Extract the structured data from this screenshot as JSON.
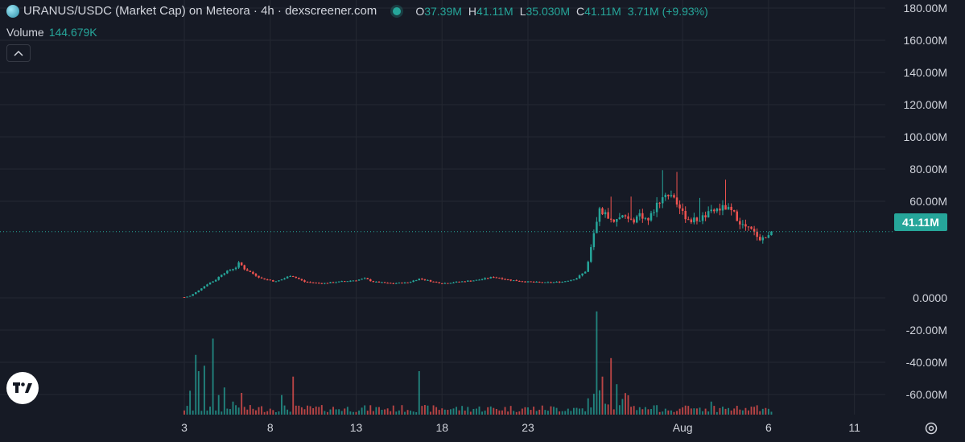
{
  "header": {
    "title": "URANUS/USDC (Market Cap) on Meteora · 4h · dexscreener.com",
    "ohlc": [
      {
        "k": "O",
        "v": "37.39M"
      },
      {
        "k": "H",
        "v": "41.11M"
      },
      {
        "k": "L",
        "v": "35.030M"
      },
      {
        "k": "C",
        "v": "41.11M"
      }
    ],
    "change": "3.71M (+9.93%)"
  },
  "volume": {
    "label": "Volume",
    "value": "144.679K"
  },
  "last_price_label": "41.11M",
  "colors": {
    "up": "#26a69a",
    "down": "#ef5350",
    "background": "#161a25",
    "grid": "#242832",
    "text": "#d1d4dc"
  },
  "icons": {
    "logo": "uranus-token-icon",
    "collapse": "chevron-up-icon",
    "tradingview": "tradingview-logo-icon",
    "settings": "gear-icon"
  },
  "chart_data": {
    "type": "candlestick",
    "title": "URANUS/USDC (Market Cap) on Meteora · 4h · dexscreener.com",
    "ylim": [
      -75000000,
      185000000
    ],
    "y_ticks": [
      {
        "value": 180000000,
        "label": "180.00M"
      },
      {
        "value": 160000000,
        "label": "160.00M"
      },
      {
        "value": 140000000,
        "label": "140.00M"
      },
      {
        "value": 120000000,
        "label": "120.00M"
      },
      {
        "value": 100000000,
        "label": "100.00M"
      },
      {
        "value": 80000000,
        "label": "80.00M"
      },
      {
        "value": 60000000,
        "label": "60.00M"
      },
      {
        "value": 0,
        "label": "0.0000"
      },
      {
        "value": -20000000,
        "label": "-20.00M"
      },
      {
        "value": -40000000,
        "label": "-40.00M"
      },
      {
        "value": -60000000,
        "label": "-60.00M"
      }
    ],
    "x_ticks": [
      {
        "day": 3,
        "label": "3"
      },
      {
        "day": 8,
        "label": "8"
      },
      {
        "day": 13,
        "label": "13"
      },
      {
        "day": 18,
        "label": "18"
      },
      {
        "day": 23,
        "label": "23"
      },
      {
        "day": 32,
        "label": "Aug"
      },
      {
        "day": 37,
        "label": "6"
      },
      {
        "day": 42,
        "label": "11"
      }
    ],
    "x_axis_unit": "days from July 0 (day 32 = August 1)",
    "last_close": 41110000,
    "keypoints": [
      [
        3.0,
        0.5
      ],
      [
        3.3,
        1
      ],
      [
        3.6,
        3
      ],
      [
        4.0,
        6
      ],
      [
        4.4,
        9
      ],
      [
        4.8,
        11
      ],
      [
        5.2,
        15
      ],
      [
        5.6,
        17
      ],
      [
        6.0,
        19
      ],
      [
        6.2,
        22
      ],
      [
        6.5,
        18
      ],
      [
        7.0,
        15
      ],
      [
        7.5,
        12
      ],
      [
        8.0,
        11
      ],
      [
        8.3,
        10
      ],
      [
        8.8,
        12
      ],
      [
        9.2,
        14
      ],
      [
        9.6,
        12
      ],
      [
        10.0,
        10
      ],
      [
        11.0,
        9
      ],
      [
        12.0,
        10
      ],
      [
        13.0,
        11
      ],
      [
        13.5,
        12
      ],
      [
        14.0,
        10
      ],
      [
        15.0,
        9
      ],
      [
        16.0,
        9.5
      ],
      [
        16.7,
        12
      ],
      [
        17.5,
        10
      ],
      [
        18.0,
        9
      ],
      [
        19.0,
        10
      ],
      [
        20.0,
        11
      ],
      [
        21.0,
        13
      ],
      [
        21.5,
        12
      ],
      [
        22.0,
        11
      ],
      [
        23.0,
        10
      ],
      [
        24.0,
        9.5
      ],
      [
        25.0,
        10
      ],
      [
        25.8,
        12
      ],
      [
        26.4,
        17
      ],
      [
        26.8,
        38
      ],
      [
        27.2,
        55
      ],
      [
        27.5,
        52
      ],
      [
        28.0,
        48
      ],
      [
        28.5,
        50
      ],
      [
        29.0,
        47
      ],
      [
        29.5,
        52
      ],
      [
        30.0,
        48
      ],
      [
        30.5,
        58
      ],
      [
        31.0,
        65
      ],
      [
        31.5,
        63
      ],
      [
        32.0,
        52
      ],
      [
        32.5,
        48
      ],
      [
        33.0,
        49
      ],
      [
        33.5,
        52
      ],
      [
        34.0,
        55
      ],
      [
        34.5,
        56
      ],
      [
        35.0,
        52
      ],
      [
        35.5,
        45
      ],
      [
        36.0,
        42
      ],
      [
        36.5,
        37
      ],
      [
        37.0,
        38
      ],
      [
        37.15,
        41.11
      ]
    ],
    "volume_max_label": "144.679K",
    "volume_spikes": [
      [
        3.3,
        0.22
      ],
      [
        3.7,
        0.55
      ],
      [
        3.9,
        0.4
      ],
      [
        4.2,
        0.45
      ],
      [
        4.6,
        0.7
      ],
      [
        5.0,
        0.18
      ],
      [
        5.3,
        0.25
      ],
      [
        5.8,
        0.12
      ],
      [
        6.3,
        0.2
      ],
      [
        8.6,
        0.18
      ],
      [
        9.3,
        0.35
      ],
      [
        16.7,
        0.4
      ],
      [
        26.5,
        0.15
      ],
      [
        27.0,
        0.95
      ],
      [
        27.3,
        0.35
      ],
      [
        27.9,
        0.52
      ],
      [
        28.1,
        0.28
      ],
      [
        33.6,
        0.12
      ]
    ]
  }
}
